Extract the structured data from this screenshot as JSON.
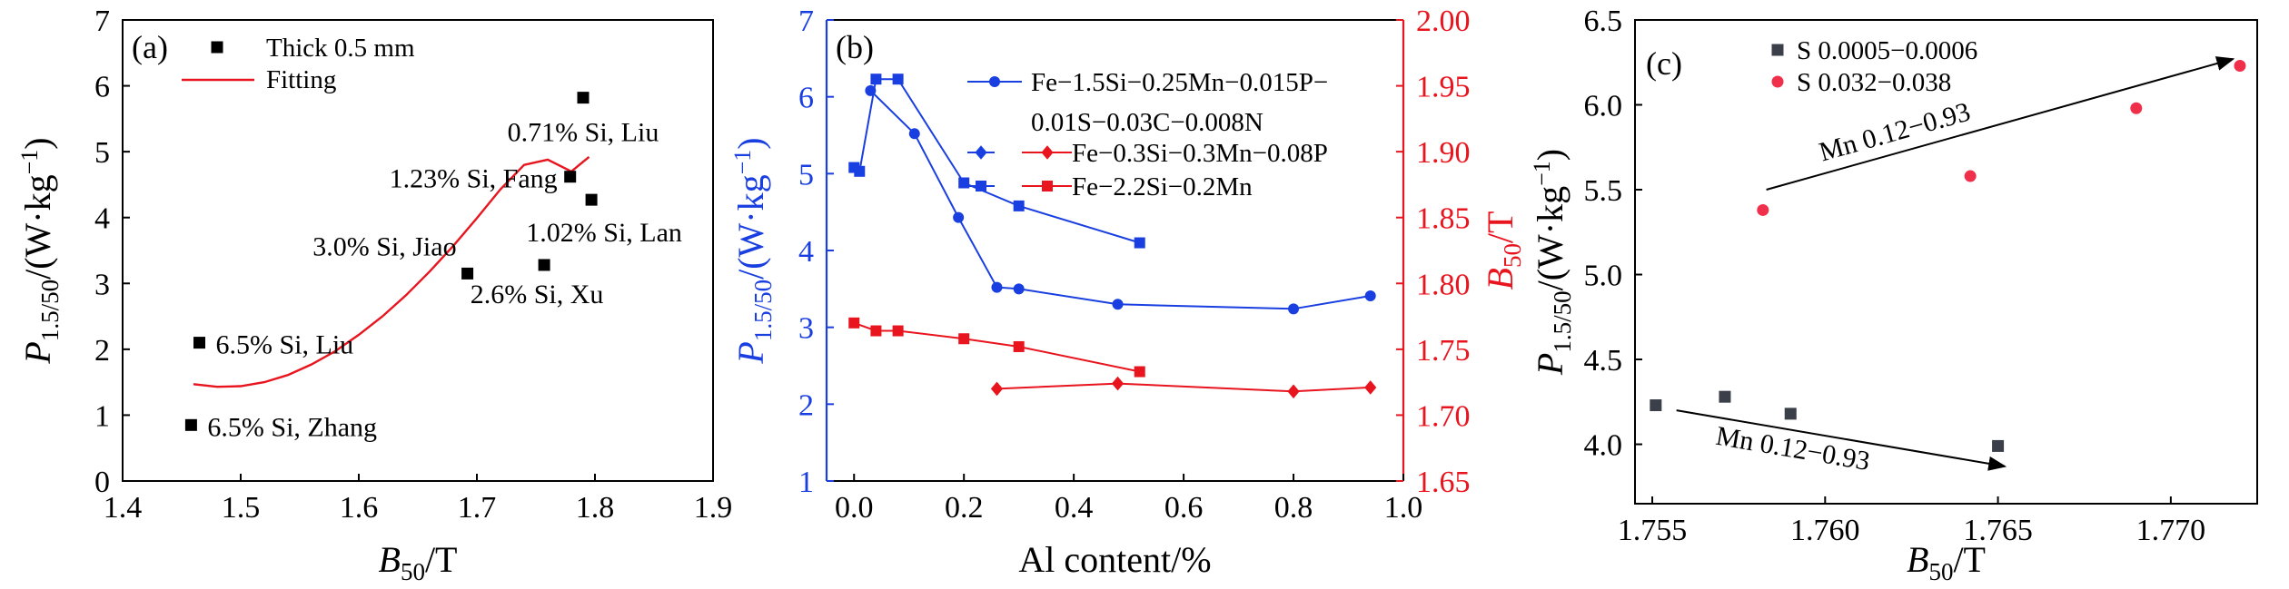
{
  "chart_data": [
    {
      "type": "scatter",
      "panel_label": "(a)",
      "xlabel_main": "B",
      "xlabel_sub": "50",
      "xlabel_unit": "/T",
      "ylabel_main": "P",
      "ylabel_sub": "1.5/50",
      "ylabel_unit": "/(W·kg",
      "ylabel_sup": "−1",
      "ylabel_close": ")",
      "xlim": [
        1.4,
        1.9
      ],
      "ylim": [
        0,
        7
      ],
      "xticks": [
        "1.4",
        "1.5",
        "1.6",
        "1.7",
        "1.8",
        "1.9"
      ],
      "yticks": [
        "0",
        "1",
        "2",
        "3",
        "4",
        "5",
        "6",
        "7"
      ],
      "legend": {
        "placement": "top-left",
        "points_label": "Thick 0.5 mm",
        "line_label": "Fitting"
      },
      "colors": {
        "points": "#000000",
        "fit": "#e8141e"
      },
      "points": [
        {
          "x": 1.458,
          "y": 0.85,
          "label": "6.5% Si, Zhang"
        },
        {
          "x": 1.465,
          "y": 2.1,
          "label": "6.5% Si, Liu"
        },
        {
          "x": 1.692,
          "y": 3.15,
          "label": "3.0% Si, Jiao"
        },
        {
          "x": 1.757,
          "y": 3.28,
          "label": "2.6% Si, Xu"
        },
        {
          "x": 1.779,
          "y": 4.62,
          "label": "1.23% Si, Fang"
        },
        {
          "x": 1.79,
          "y": 5.82,
          "label": "0.71% Si, Liu"
        },
        {
          "x": 1.797,
          "y": 4.27,
          "label": "1.02% Si, Lan"
        }
      ],
      "fit_curve": {
        "x": [
          1.46,
          1.48,
          1.5,
          1.52,
          1.54,
          1.56,
          1.58,
          1.6,
          1.62,
          1.64,
          1.66,
          1.68,
          1.7,
          1.72,
          1.74,
          1.76,
          1.78,
          1.795
        ],
        "y": [
          1.47,
          1.43,
          1.44,
          1.5,
          1.61,
          1.77,
          1.97,
          2.22,
          2.5,
          2.82,
          3.18,
          3.57,
          3.99,
          4.43,
          4.8,
          4.88,
          4.7,
          4.92
        ]
      }
    },
    {
      "type": "line",
      "panel_label": "(b)",
      "xlabel": "Al content/%",
      "ylabel_main": "P",
      "ylabel_sub": "1.5/50",
      "ylabel_unit": "/(W·kg",
      "ylabel_sup": "−1",
      "ylabel_close": ")",
      "y2label_main": "B",
      "y2label_sub": "50",
      "y2label_unit": "/T",
      "xlim": [
        -0.05,
        1.0
      ],
      "ylim": [
        1,
        7
      ],
      "y2lim": [
        1.65,
        2.0
      ],
      "xticks": [
        "0.0",
        "0.2",
        "0.4",
        "0.6",
        "0.8",
        "1.0"
      ],
      "yticks": [
        "1",
        "2",
        "3",
        "4",
        "5",
        "6",
        "7"
      ],
      "y2ticks": [
        "1.65",
        "1.70",
        "1.75",
        "1.80",
        "1.85",
        "1.90",
        "1.95",
        "2.00"
      ],
      "legend": {
        "placement": "top-right",
        "entries": [
          {
            "text1": "Fe−1.5Si−0.25Mn−0.015P−",
            "text2": "0.01S−0.03C−0.008N"
          },
          {
            "text1": "Fe−0.3Si−0.3Mn−0.08P"
          },
          {
            "text1": "Fe−2.2Si−0.2Mn"
          }
        ]
      },
      "colors": {
        "loss": "#1a3fe0",
        "b50": "#e8141e"
      },
      "series": [
        {
          "name": "Fe−1.5Si−0.25Mn−0.015P−0.01S−0.03C−0.008N",
          "axis": "left",
          "marker": "circle",
          "color": "#1a3fe0",
          "x": [
            0.03,
            0.11,
            0.19,
            0.26,
            0.3,
            0.48,
            0.8,
            0.94
          ],
          "y": [
            6.08,
            5.52,
            4.43,
            3.52,
            3.5,
            3.3,
            3.24,
            3.41
          ]
        },
        {
          "name": "Fe−0.3Si−0.3Mn−0.08P (P1.5/50)",
          "axis": "left",
          "marker": "square",
          "color": "#1a3fe0",
          "x": [
            0.0,
            0.01,
            0.04,
            0.08,
            0.2,
            0.3,
            0.52
          ],
          "y": [
            5.08,
            5.03,
            6.23,
            6.23,
            4.88,
            4.58,
            4.1
          ]
        },
        {
          "name": "Fe−0.3Si−0.3Mn−0.08P",
          "axis": "right",
          "marker": "diamond",
          "color": "#e8141e",
          "x": [
            0.26,
            0.48,
            0.8,
            0.94
          ],
          "y": [
            1.72,
            1.724,
            1.718,
            1.721
          ]
        },
        {
          "name": "Fe−2.2Si−0.2Mn",
          "axis": "right",
          "marker": "square",
          "color": "#e8141e",
          "x": [
            0.0,
            0.04,
            0.08,
            0.2,
            0.3,
            0.52
          ],
          "y": [
            1.77,
            1.764,
            1.764,
            1.758,
            1.752,
            1.733
          ]
        }
      ]
    },
    {
      "type": "scatter",
      "panel_label": "(c)",
      "xlabel_main": "B",
      "xlabel_sub": "50",
      "xlabel_unit": "/T",
      "ylabel_main": "P",
      "ylabel_sub": "1.5/50",
      "ylabel_unit": "/(W·kg",
      "ylabel_sup": "−1",
      "ylabel_close": ")",
      "xlim": [
        1.7545,
        1.7725
      ],
      "ylim": [
        3.65,
        6.5
      ],
      "xticks": [
        "1.755",
        "1.760",
        "1.765",
        "1.770"
      ],
      "yticks": [
        "4.0",
        "4.5",
        "5.0",
        "5.5",
        "6.0",
        "6.5"
      ],
      "legend": {
        "placement": "top-left",
        "entries": [
          "S 0.0005−0.0006",
          "S 0.032−0.038"
        ]
      },
      "colors": {
        "low_s": "#3a3f4a",
        "high_s": "#f0304a"
      },
      "series": [
        {
          "name": "S 0.0005−0.0006",
          "color": "#3a3f4a",
          "marker": "square",
          "x": [
            1.7551,
            1.7571,
            1.759,
            1.765
          ],
          "y": [
            4.23,
            4.28,
            4.18,
            3.99
          ]
        },
        {
          "name": "S 0.032−0.038",
          "color": "#f0304a",
          "marker": "circle",
          "x": [
            1.7582,
            1.7642,
            1.769,
            1.772
          ],
          "y": [
            5.38,
            5.58,
            5.98,
            6.23
          ]
        }
      ],
      "annotations": [
        {
          "text": "Mn 0.12−0.93",
          "from": [
            1.7583,
            5.5
          ],
          "to": [
            1.7718,
            6.27
          ]
        },
        {
          "text": "Mn 0.12−0.93",
          "from": [
            1.7557,
            4.2
          ],
          "to": [
            1.7652,
            3.87
          ]
        }
      ]
    }
  ]
}
